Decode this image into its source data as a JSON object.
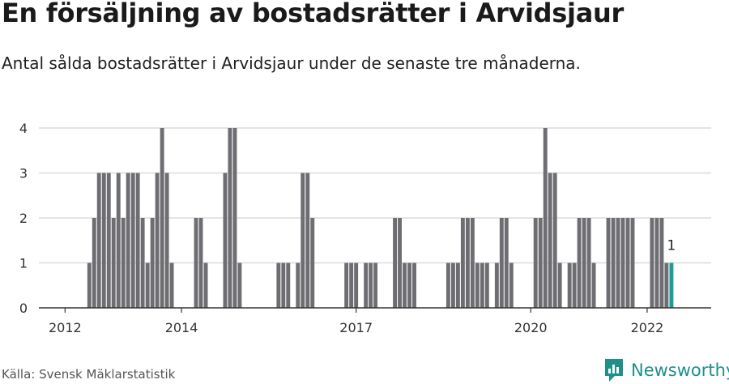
{
  "title": "En försäljning av bostadsrätter i Arvidsjaur",
  "subtitle": "Antal sålda bostadsrätter i Arvidsjaur under de senaste tre månaderna.",
  "source": "Källa: Svensk Mäklarstatistik",
  "logo": {
    "text": "Newsworthy",
    "icon": "newsworthy-logo-icon"
  },
  "colors": {
    "bar": "#6e6d72",
    "highlight": "#1f9c97",
    "grid": "#dcdcdc",
    "axis": "#333333"
  },
  "chart_data": {
    "type": "bar",
    "title": "En försäljning av bostadsrätter i Arvidsjaur",
    "subtitle": "Antal sålda bostadsrätter i Arvidsjaur under de senaste tre månaderna.",
    "xlabel": "",
    "ylabel": "",
    "ylim": [
      0,
      4
    ],
    "yticks": [
      0,
      1,
      2,
      3,
      4
    ],
    "xticks": [
      {
        "label": "2012",
        "x": 2012.0
      },
      {
        "label": "2014",
        "x": 2014.0
      },
      {
        "label": "2017",
        "x": 2017.0
      },
      {
        "label": "2020",
        "x": 2020.0
      },
      {
        "label": "2022",
        "x": 2022.0
      }
    ],
    "xlim": [
      2011.55,
      2023.1
    ],
    "grid": true,
    "highlight_label": "1",
    "bars": [
      {
        "x": 2012.417,
        "y": 1
      },
      {
        "x": 2012.5,
        "y": 2
      },
      {
        "x": 2012.583,
        "y": 3
      },
      {
        "x": 2012.667,
        "y": 3
      },
      {
        "x": 2012.75,
        "y": 3
      },
      {
        "x": 2012.833,
        "y": 2
      },
      {
        "x": 2012.917,
        "y": 3
      },
      {
        "x": 2013.0,
        "y": 2
      },
      {
        "x": 2013.083,
        "y": 3
      },
      {
        "x": 2013.167,
        "y": 3
      },
      {
        "x": 2013.25,
        "y": 3
      },
      {
        "x": 2013.333,
        "y": 2
      },
      {
        "x": 2013.417,
        "y": 1
      },
      {
        "x": 2013.5,
        "y": 2
      },
      {
        "x": 2013.583,
        "y": 3
      },
      {
        "x": 2013.667,
        "y": 4
      },
      {
        "x": 2013.75,
        "y": 3
      },
      {
        "x": 2013.833,
        "y": 1
      },
      {
        "x": 2014.25,
        "y": 2
      },
      {
        "x": 2014.333,
        "y": 2
      },
      {
        "x": 2014.417,
        "y": 1
      },
      {
        "x": 2014.75,
        "y": 3
      },
      {
        "x": 2014.833,
        "y": 4
      },
      {
        "x": 2014.917,
        "y": 4
      },
      {
        "x": 2015.0,
        "y": 1
      },
      {
        "x": 2015.667,
        "y": 1
      },
      {
        "x": 2015.75,
        "y": 1
      },
      {
        "x": 2015.833,
        "y": 1
      },
      {
        "x": 2016.0,
        "y": 1
      },
      {
        "x": 2016.083,
        "y": 3
      },
      {
        "x": 2016.167,
        "y": 3
      },
      {
        "x": 2016.25,
        "y": 2
      },
      {
        "x": 2016.833,
        "y": 1
      },
      {
        "x": 2016.917,
        "y": 1
      },
      {
        "x": 2017.0,
        "y": 1
      },
      {
        "x": 2017.167,
        "y": 1
      },
      {
        "x": 2017.25,
        "y": 1
      },
      {
        "x": 2017.333,
        "y": 1
      },
      {
        "x": 2017.667,
        "y": 2
      },
      {
        "x": 2017.75,
        "y": 2
      },
      {
        "x": 2017.833,
        "y": 1
      },
      {
        "x": 2017.917,
        "y": 1
      },
      {
        "x": 2018.0,
        "y": 1
      },
      {
        "x": 2018.583,
        "y": 1
      },
      {
        "x": 2018.667,
        "y": 1
      },
      {
        "x": 2018.75,
        "y": 1
      },
      {
        "x": 2018.833,
        "y": 2
      },
      {
        "x": 2018.917,
        "y": 2
      },
      {
        "x": 2019.0,
        "y": 2
      },
      {
        "x": 2019.083,
        "y": 1
      },
      {
        "x": 2019.167,
        "y": 1
      },
      {
        "x": 2019.25,
        "y": 1
      },
      {
        "x": 2019.417,
        "y": 1
      },
      {
        "x": 2019.5,
        "y": 2
      },
      {
        "x": 2019.583,
        "y": 2
      },
      {
        "x": 2019.667,
        "y": 1
      },
      {
        "x": 2020.083,
        "y": 2
      },
      {
        "x": 2020.167,
        "y": 2
      },
      {
        "x": 2020.25,
        "y": 4
      },
      {
        "x": 2020.333,
        "y": 3
      },
      {
        "x": 2020.417,
        "y": 3
      },
      {
        "x": 2020.5,
        "y": 1
      },
      {
        "x": 2020.667,
        "y": 1
      },
      {
        "x": 2020.75,
        "y": 1
      },
      {
        "x": 2020.833,
        "y": 2
      },
      {
        "x": 2020.917,
        "y": 2
      },
      {
        "x": 2021.0,
        "y": 2
      },
      {
        "x": 2021.083,
        "y": 1
      },
      {
        "x": 2021.333,
        "y": 2
      },
      {
        "x": 2021.417,
        "y": 2
      },
      {
        "x": 2021.5,
        "y": 2
      },
      {
        "x": 2021.583,
        "y": 2
      },
      {
        "x": 2021.667,
        "y": 2
      },
      {
        "x": 2021.75,
        "y": 2
      },
      {
        "x": 2022.083,
        "y": 2
      },
      {
        "x": 2022.167,
        "y": 2
      },
      {
        "x": 2022.25,
        "y": 2
      },
      {
        "x": 2022.333,
        "y": 1
      },
      {
        "x": 2022.417,
        "y": 1,
        "highlight": true
      }
    ]
  }
}
